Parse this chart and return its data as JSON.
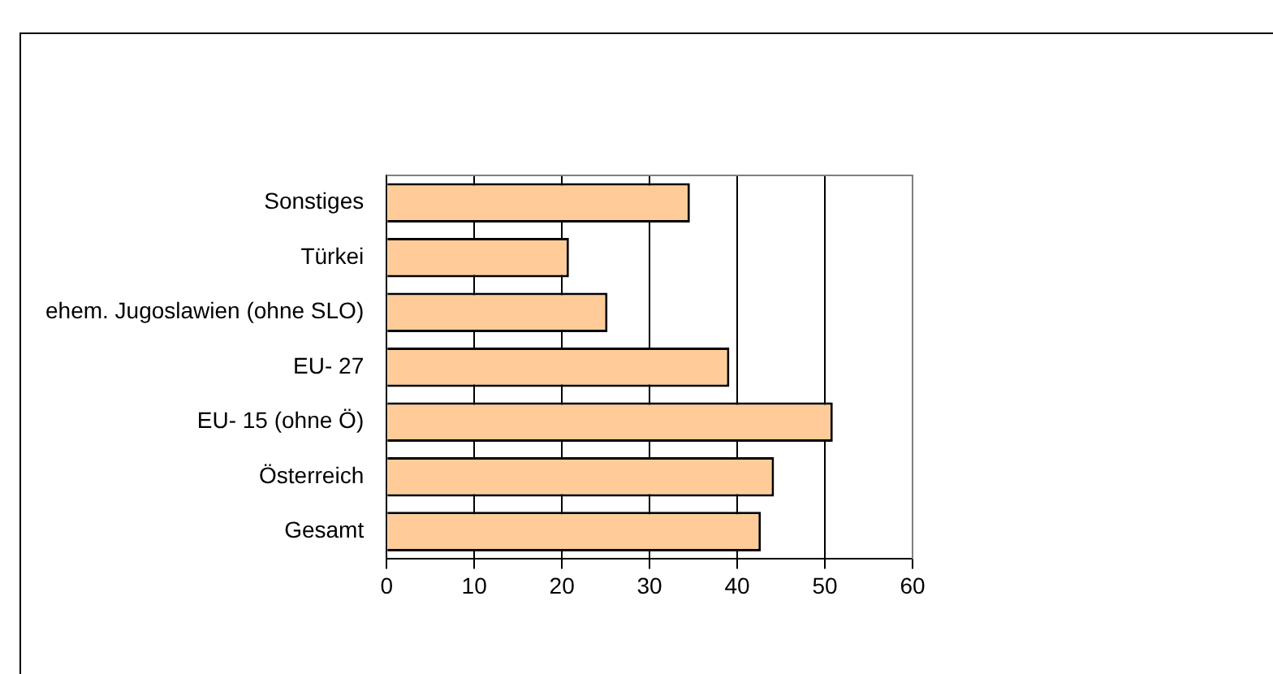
{
  "chart_data": {
    "type": "bar",
    "orientation": "horizontal",
    "categories": [
      "Sonstiges",
      "Türkei",
      "ehem. Jugoslawien (ohne SLO)",
      "EU- 27",
      "EU- 15 (ohne Ö)",
      "Österreich",
      "Gesamt"
    ],
    "values": [
      34.6,
      20.8,
      25.2,
      39.1,
      50.9,
      44.2,
      42.7
    ],
    "color": "#ffcc99",
    "xlim": [
      0,
      60
    ],
    "xticks": [
      0,
      10,
      20,
      30,
      40,
      50,
      60
    ],
    "grid": "x",
    "legend": false
  }
}
